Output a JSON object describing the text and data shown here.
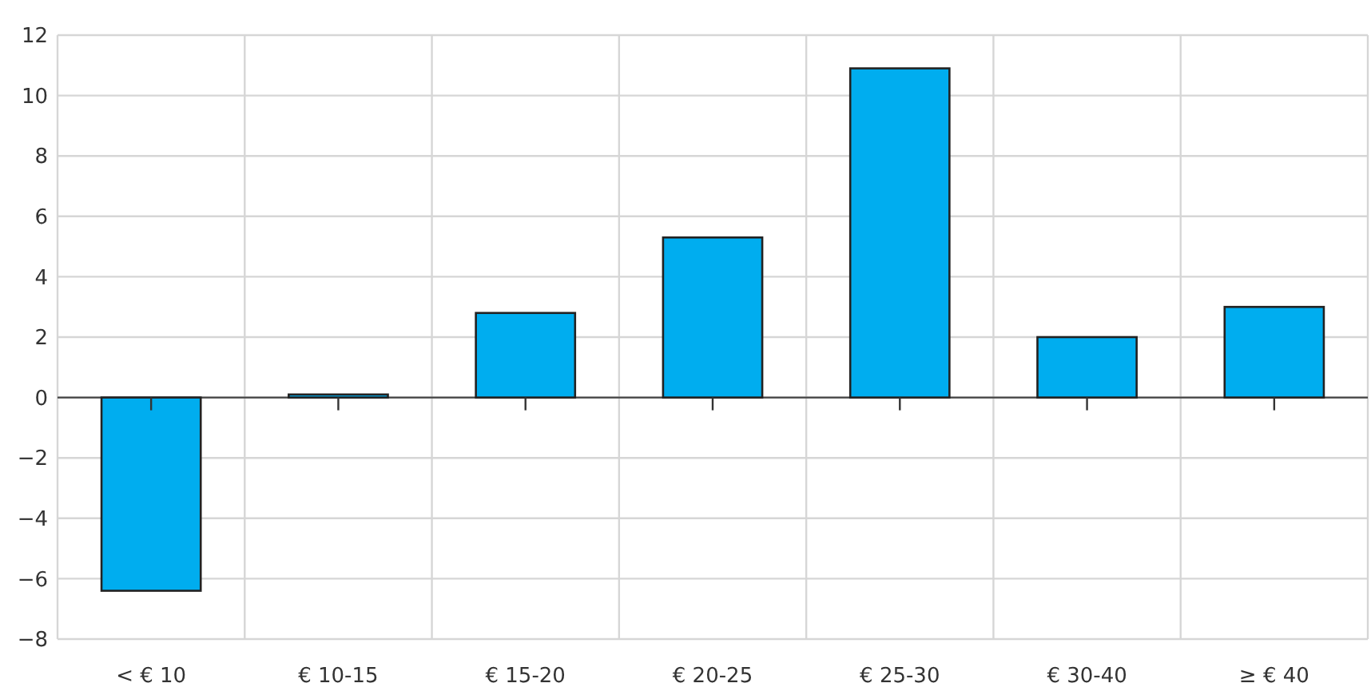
{
  "chart_data": {
    "type": "bar",
    "categories": [
      "< € 10",
      "€ 10-15",
      "€ 15-20",
      "€ 20-25",
      "€ 25-30",
      "€ 30-40",
      "≥ € 40"
    ],
    "values": [
      -6.4,
      0.1,
      2.8,
      5.3,
      10.9,
      2.0,
      3.0
    ],
    "color": "#00adef",
    "ylim": [
      -8,
      12
    ],
    "yticks": [
      {
        "value": -8,
        "label": "−8"
      },
      {
        "value": -6,
        "label": "−6"
      },
      {
        "value": -4,
        "label": "−4"
      },
      {
        "value": -2,
        "label": "−2"
      },
      0,
      2,
      4,
      6,
      8,
      10,
      12
    ],
    "grid": true
  }
}
